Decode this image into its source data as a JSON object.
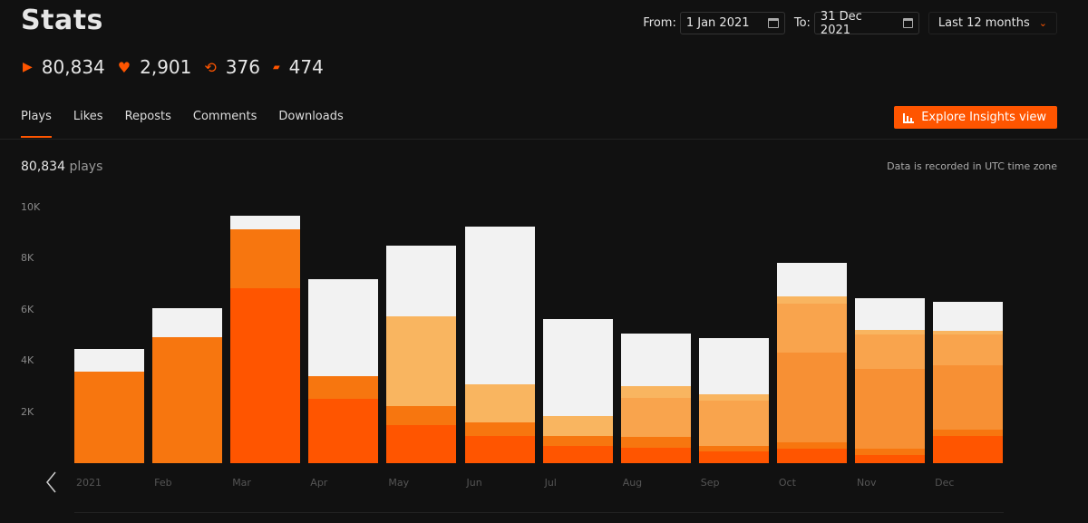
{
  "header": {
    "title": "Stats"
  },
  "totals": [
    {
      "icon": "play-icon",
      "glyph": "▶",
      "value": "80,834"
    },
    {
      "icon": "heart-icon",
      "glyph": "♥",
      "value": "2,901"
    },
    {
      "icon": "repost-icon",
      "glyph": "⟲",
      "value": "376"
    },
    {
      "icon": "comment-icon",
      "glyph": "▰",
      "value": "474"
    }
  ],
  "date_range": {
    "from_label": "From:",
    "from": "1 Jan 2021",
    "to_label": "To:",
    "to": "31 Dec 2021",
    "preset": "Last 12 months"
  },
  "tabs": [
    "Plays",
    "Likes",
    "Reposts",
    "Comments",
    "Downloads"
  ],
  "active_tab": "Plays",
  "insights_button": "Explore Insights view",
  "summary": {
    "count": "80,834",
    "unit": "plays"
  },
  "timezone_note": "Data is recorded in UTC time zone",
  "colors": {
    "accent": "#ff5500"
  },
  "chart_data": {
    "type": "bar",
    "stacked": true,
    "categories": [
      "2021",
      "Feb",
      "Mar",
      "Apr",
      "May",
      "Jun",
      "Jul",
      "Aug",
      "Sep",
      "Oct",
      "Nov",
      "Dec"
    ],
    "yticks": [
      "2K",
      "4K",
      "6K",
      "8K",
      "10K"
    ],
    "ylim": [
      0,
      10000
    ],
    "series": [
      {
        "name": "series-1",
        "color": "#ff5500",
        "values": [
          0,
          0,
          6840,
          2520,
          1490,
          1060,
          670,
          600,
          460,
          570,
          320,
          1060
        ]
      },
      {
        "name": "series-2",
        "color": "#f7760f",
        "values": [
          3580,
          4930,
          2310,
          880,
          740,
          540,
          390,
          430,
          210,
          250,
          250,
          250
        ]
      },
      {
        "name": "series-3",
        "color": "#f79034",
        "values": [
          0,
          0,
          0,
          0,
          0,
          0,
          0,
          0,
          0,
          3510,
          3120,
          2520
        ]
      },
      {
        "name": "series-4",
        "color": "#f9a44d",
        "values": [
          0,
          0,
          0,
          0,
          0,
          0,
          0,
          1520,
          1780,
          1910,
          1350,
          1210
        ]
      },
      {
        "name": "series-5",
        "color": "#f9b560",
        "values": [
          0,
          0,
          0,
          0,
          3510,
          1490,
          780,
          460,
          250,
          280,
          170,
          140
        ]
      },
      {
        "name": "series-6",
        "color": "#f2f2f2",
        "values": [
          890,
          1130,
          530,
          3800,
          2770,
          6170,
          3800,
          2060,
          2190,
          1320,
          1240,
          1130
        ]
      }
    ]
  }
}
